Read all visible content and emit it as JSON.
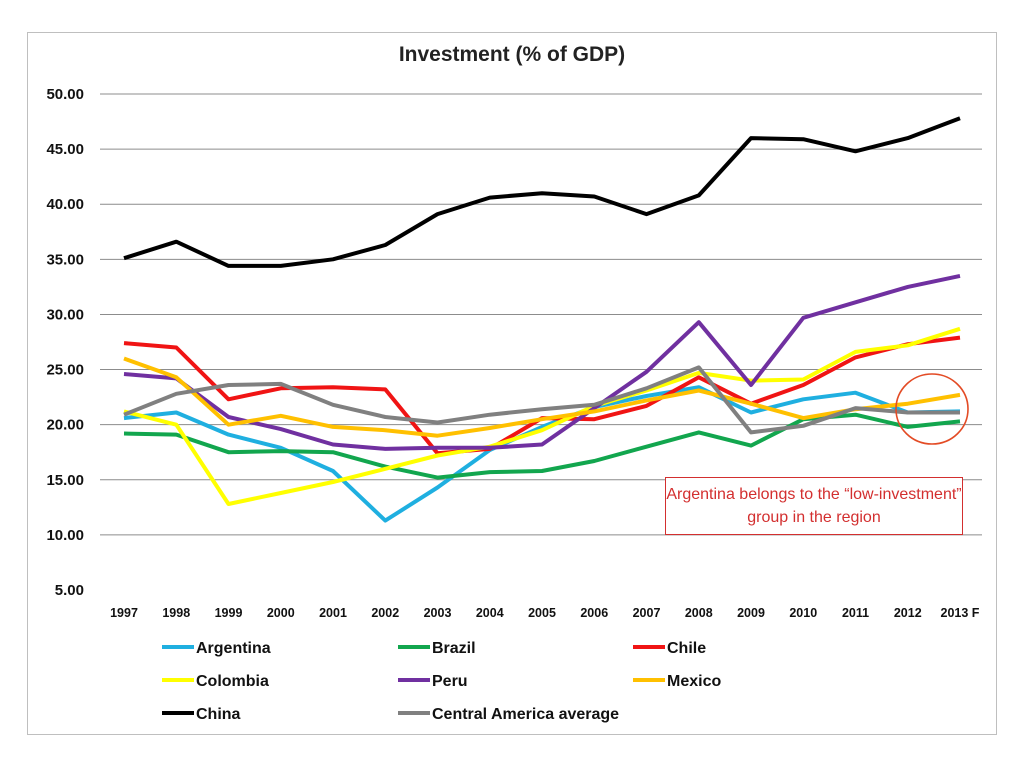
{
  "chart_data": {
    "type": "line",
    "title": "Investment (% of GDP)",
    "xlabel": "",
    "ylabel": "",
    "ylim": [
      5,
      50
    ],
    "yticks": [
      "50.00",
      "45.00",
      "40.00",
      "35.00",
      "30.00",
      "25.00",
      "20.00",
      "15.00",
      "10.00",
      "5.00"
    ],
    "categories": [
      "1997",
      "1998",
      "1999",
      "2000",
      "2001",
      "2002",
      "2003",
      "2004",
      "2005",
      "2006",
      "2007",
      "2008",
      "2009",
      "2010",
      "2011",
      "2012",
      "2013 F"
    ],
    "series": [
      {
        "name": "Argentina",
        "color": "#1FAFE0",
        "values": [
          20.6,
          21.1,
          19.1,
          17.9,
          15.8,
          11.3,
          14.3,
          17.7,
          19.8,
          21.6,
          22.6,
          23.4,
          21.1,
          22.3,
          22.9,
          21.1,
          21.2
        ]
      },
      {
        "name": "Brazil",
        "color": "#12A64E",
        "values": [
          19.2,
          19.1,
          17.5,
          17.6,
          17.5,
          16.2,
          15.2,
          15.7,
          15.8,
          16.7,
          18.0,
          19.3,
          18.1,
          20.5,
          20.9,
          19.8,
          20.3
        ]
      },
      {
        "name": "Chile",
        "color": "#F01414",
        "values": [
          27.4,
          27.0,
          22.3,
          23.3,
          23.4,
          23.2,
          17.4,
          17.8,
          20.6,
          20.5,
          21.7,
          24.3,
          21.9,
          23.6,
          26.1,
          27.3,
          27.9
        ]
      },
      {
        "name": "Colombia",
        "color": "#FFFF00",
        "values": [
          21.2,
          20.0,
          12.8,
          13.8,
          14.8,
          16.0,
          17.2,
          18.0,
          19.5,
          21.7,
          23.1,
          24.7,
          24.0,
          24.1,
          26.6,
          27.2,
          28.7
        ]
      },
      {
        "name": "Peru",
        "color": "#7030A0",
        "values": [
          24.6,
          24.2,
          20.7,
          19.6,
          18.2,
          17.8,
          17.9,
          17.9,
          18.2,
          21.5,
          24.8,
          29.3,
          23.6,
          29.7,
          31.1,
          32.5,
          33.5
        ]
      },
      {
        "name": "Mexico",
        "color": "#FFC000",
        "values": [
          26.0,
          24.3,
          20.0,
          20.8,
          19.8,
          19.5,
          19.0,
          19.7,
          20.5,
          21.2,
          22.2,
          23.1,
          21.9,
          20.6,
          21.4,
          21.9,
          22.7
        ]
      },
      {
        "name": "China",
        "color": "#000000",
        "values": [
          35.1,
          36.6,
          34.4,
          34.4,
          35.0,
          36.3,
          39.1,
          40.6,
          41.0,
          40.7,
          39.1,
          40.8,
          46.0,
          45.9,
          44.8,
          46.0,
          47.8
        ]
      },
      {
        "name": "Central America average",
        "color": "#808080",
        "values": [
          20.9,
          22.8,
          23.6,
          23.7,
          21.8,
          20.7,
          20.2,
          20.9,
          21.4,
          21.8,
          23.3,
          25.2,
          19.3,
          19.9,
          21.5,
          21.1,
          21.1
        ]
      }
    ],
    "legend_position": "bottom",
    "annotation": "Argentina belongs to the “low-investment” group in the region"
  }
}
